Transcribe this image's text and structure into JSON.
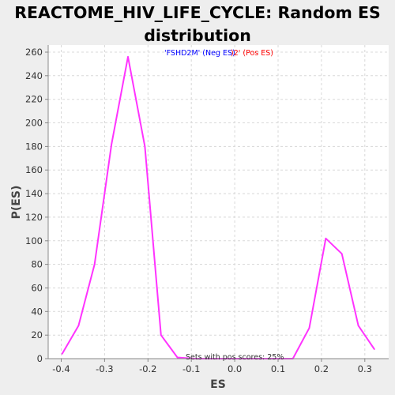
{
  "chart_data": {
    "type": "line",
    "title": "REACTOME_HIV_LIFE_CYCLE: Random ES distribution",
    "xlabel": "ES",
    "ylabel": "P(ES)",
    "xlim": [
      -0.43,
      0.355
    ],
    "ylim": [
      0,
      266
    ],
    "x_ticks": [
      -0.4,
      -0.3,
      -0.2,
      -0.1,
      0.0,
      0.1,
      0.2,
      0.3
    ],
    "x_tick_labels": [
      "-0.4",
      "-0.3",
      "-0.2",
      "-0.1",
      "0.0",
      "0.1",
      "0.2",
      "0.3"
    ],
    "y_ticks": [
      0,
      20,
      40,
      60,
      80,
      100,
      120,
      140,
      160,
      180,
      200,
      220,
      240,
      260
    ],
    "grid": true,
    "legend": {
      "placement": "top-center",
      "neg_label": "'FSHD2M' (Neg ES)",
      "neg_color": "#0000ff",
      "pos_label": ")2' (Pos ES)",
      "pos_color": "#ff0000"
    },
    "annotation": "Sets with pos scores: 25%",
    "series": [
      {
        "color": "#ff33ff",
        "x": [
          -0.398,
          -0.36,
          -0.323,
          -0.284,
          -0.246,
          -0.207,
          -0.17,
          -0.132,
          -0.094,
          -0.055,
          -0.018,
          0.02,
          0.058,
          0.096,
          0.134,
          0.172,
          0.21,
          0.247,
          0.285,
          0.322
        ],
        "y": [
          4,
          28,
          80,
          182,
          256,
          180,
          20,
          1,
          0,
          0,
          0,
          0,
          0,
          0,
          0,
          26,
          102,
          89,
          28,
          8
        ]
      }
    ]
  }
}
